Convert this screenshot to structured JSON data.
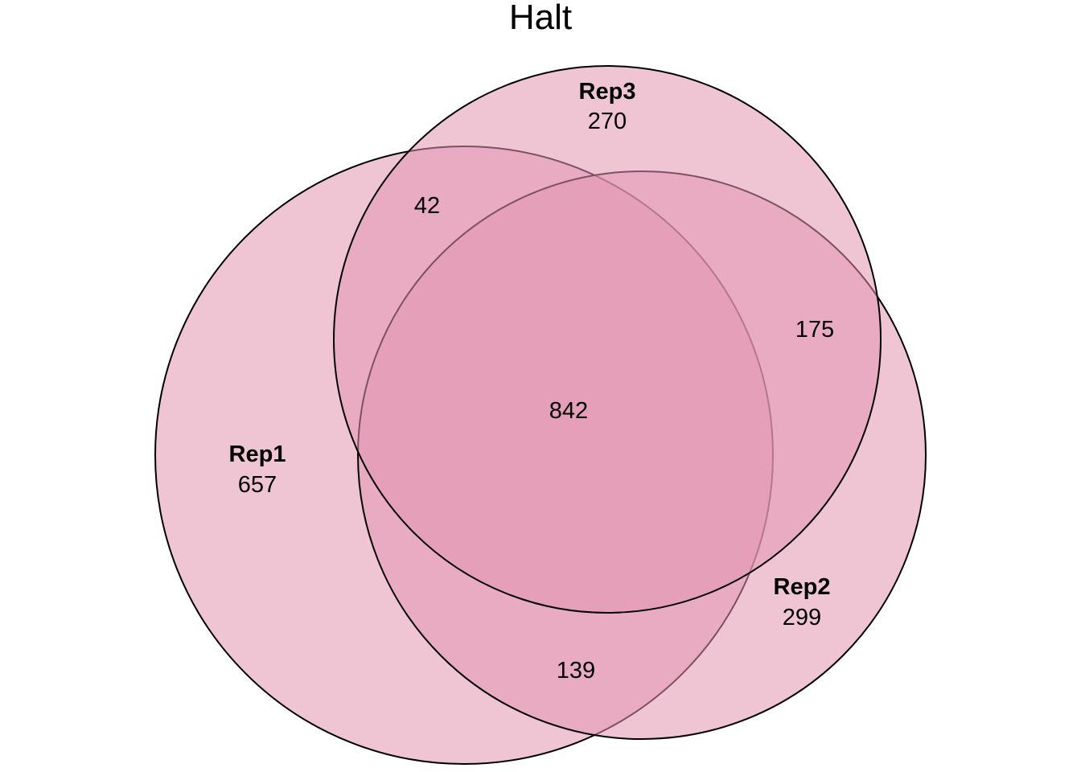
{
  "title": "Halt",
  "fill_color": "#e196b1",
  "outline_color": "#000000",
  "sets": [
    {
      "name": "Rep1",
      "unique": "657"
    },
    {
      "name": "Rep2",
      "unique": "299"
    },
    {
      "name": "Rep3",
      "unique": "270"
    }
  ],
  "intersections": {
    "rep1_rep3": "42",
    "rep2_rep3": "175",
    "rep1_rep2": "139",
    "all_three": "842"
  }
}
